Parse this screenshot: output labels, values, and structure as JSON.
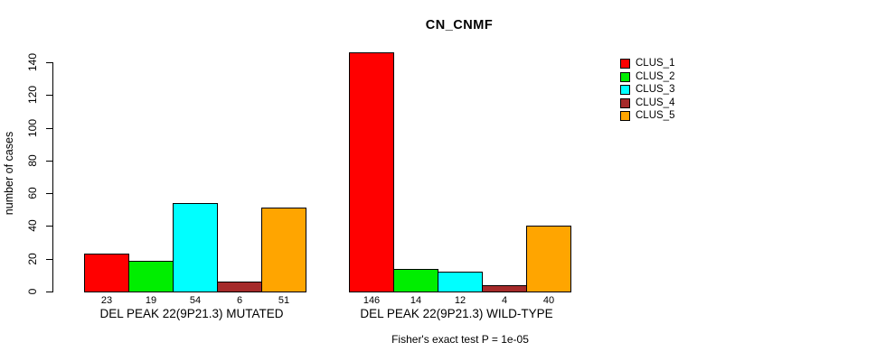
{
  "chart_data": {
    "type": "bar",
    "title": "CN_CNMF",
    "ylabel": "number of cases",
    "ylim": [
      0,
      140
    ],
    "yticks": [
      0,
      20,
      40,
      60,
      80,
      100,
      120,
      140
    ],
    "grid": false,
    "legend_position": "top-right",
    "categories": [
      "DEL PEAK 22(9P21.3) MUTATED",
      "DEL PEAK 22(9P21.3) WILD-TYPE"
    ],
    "series": [
      {
        "name": "CLUS_1",
        "color": "#FF0000",
        "values": [
          23,
          146
        ]
      },
      {
        "name": "CLUS_2",
        "color": "#00EE00",
        "values": [
          19,
          14
        ]
      },
      {
        "name": "CLUS_3",
        "color": "#00FFFF",
        "values": [
          54,
          12
        ]
      },
      {
        "name": "CLUS_4",
        "color": "#A52A2A",
        "values": [
          6,
          4
        ]
      },
      {
        "name": "CLUS_5",
        "color": "#FFA500",
        "values": [
          51,
          40
        ]
      }
    ],
    "bar_value_labels_shown": true,
    "annotation": "Fisher's exact test P = 1e-05",
    "axis_color": "#000000"
  }
}
